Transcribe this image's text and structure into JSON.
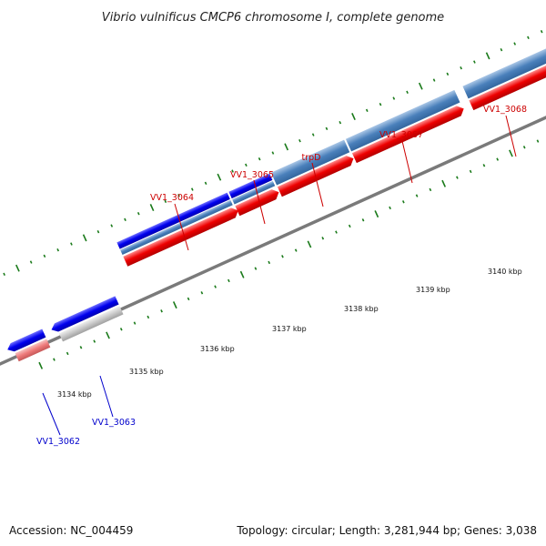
{
  "title": "Vibrio vulnificus CMCP6 chromosome I, complete genome",
  "colors": {
    "forward_cds": "#0000ee",
    "forward_gene": "#4a80bb",
    "reverse_cds": "#ee0000",
    "reverse_gene_light": "#ee7a7a",
    "grey_feature": "#c8c8c8",
    "backbone": "#7a7a7a",
    "ticks": "#1a7a1a",
    "forward_label": "#0000cc",
    "reverse_label": "#cc0000"
  },
  "tick_labels": [
    "3134 kbp",
    "3135 kbp",
    "3136 kbp",
    "3137 kbp",
    "3138 kbp",
    "3139 kbp",
    "3140 kbp"
  ],
  "gene_labels": [
    {
      "name": "VV1_3062",
      "strand": "forward"
    },
    {
      "name": "VV1_3063",
      "strand": "forward"
    },
    {
      "name": "VV1_3064",
      "strand": "reverse"
    },
    {
      "name": "VV1_3065",
      "strand": "reverse"
    },
    {
      "name": "trpD",
      "strand": "reverse"
    },
    {
      "name": "VV1_3067",
      "strand": "reverse"
    },
    {
      "name": "VV1_3068",
      "strand": "reverse"
    }
  ],
  "footer": {
    "accession": "Accession: NC_004459",
    "summary": "Topology: circular; Length: 3,281,944 bp; Genes: 3,038"
  }
}
